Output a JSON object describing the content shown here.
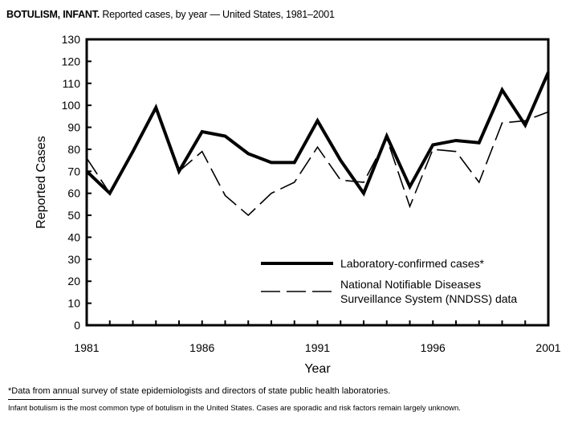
{
  "title_bold": "BOTULISM, INFANT.",
  "title_rest": " Reported cases, by year — United States, 1981–2001",
  "footnote": "*Data from annual survey of state epidemiologists and directors of state public health laboratories.",
  "note": "Infant botulism is the most common type of botulism in the United States. Cases are sporadic and risk factors remain largely unknown.",
  "chart_data": {
    "type": "line",
    "xlabel": "Year",
    "ylabel": "Reported Cases",
    "xlim": [
      1981,
      2001
    ],
    "ylim": [
      0,
      130
    ],
    "xticks": [
      1981,
      1986,
      1991,
      1996,
      2001
    ],
    "yticks": [
      0,
      10,
      20,
      30,
      40,
      50,
      60,
      70,
      80,
      90,
      100,
      110,
      120,
      130
    ],
    "grid": false,
    "legend_placement": "bottom-right",
    "x": [
      1981,
      1982,
      1983,
      1984,
      1985,
      1986,
      1987,
      1988,
      1989,
      1990,
      1991,
      1992,
      1993,
      1994,
      1995,
      1996,
      1997,
      1998,
      1999,
      2000,
      2001
    ],
    "series": [
      {
        "name": "Laboratory-confirmed cases*",
        "style": "solid-thick",
        "values": [
          70,
          60,
          79,
          99,
          70,
          88,
          86,
          78,
          74,
          74,
          93,
          75,
          60,
          86,
          63,
          82,
          84,
          83,
          107,
          91,
          115
        ]
      },
      {
        "name": "National Notifiable Diseases Surveillance System (NNDSS) data",
        "name_line1": "National Notifiable Diseases",
        "name_line2": "Surveillance System (NNDSS) data",
        "style": "dashed-thin",
        "values": [
          76,
          60,
          79,
          99,
          70,
          79,
          59,
          50,
          60,
          65,
          81,
          66,
          65,
          85,
          54,
          80,
          79,
          65,
          92,
          93,
          97
        ]
      }
    ]
  }
}
